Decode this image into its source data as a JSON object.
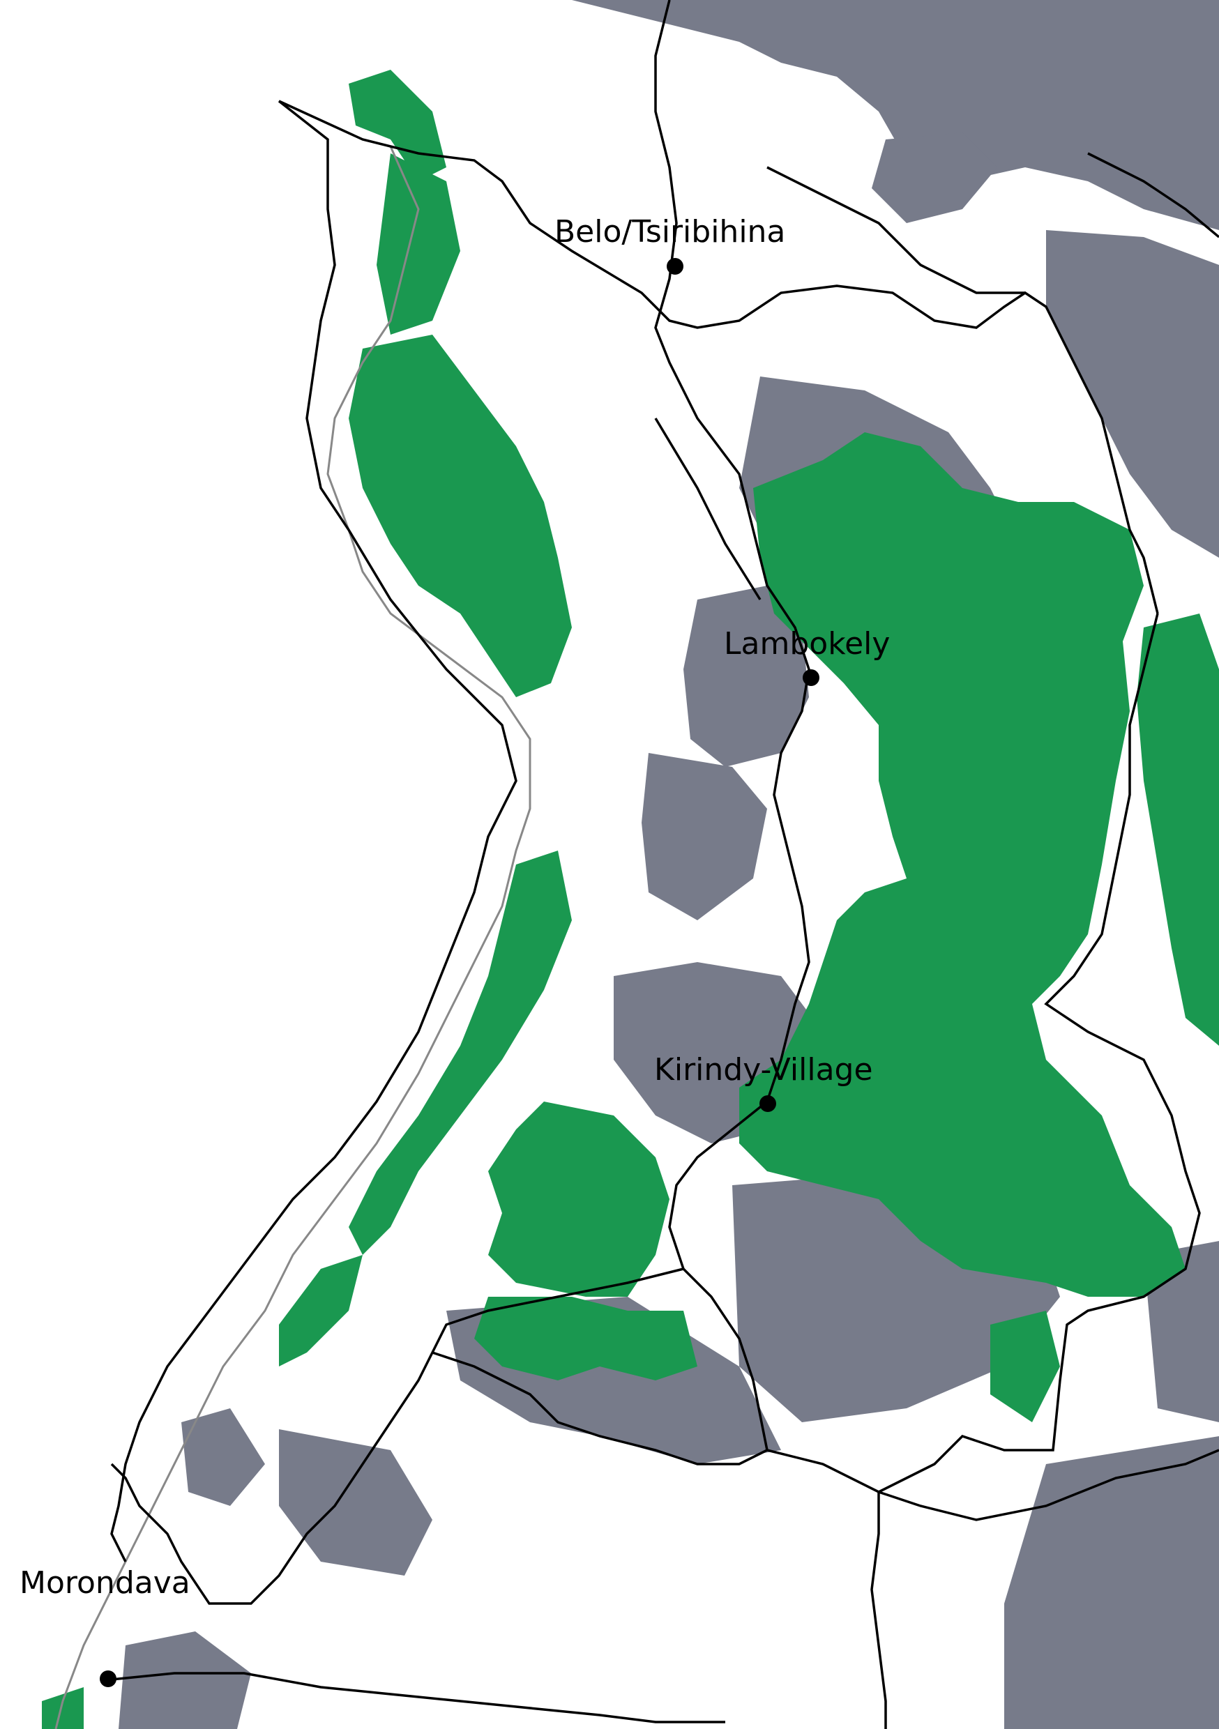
{
  "map": {
    "towns": [
      {
        "id": "belo",
        "name": "Belo/Tsiribihina"
      },
      {
        "id": "lambokely",
        "name": "Lambokely"
      },
      {
        "id": "kirindy",
        "name": "Kirindy-Village"
      },
      {
        "id": "morondava",
        "name": "Morondava"
      }
    ],
    "colors": {
      "forest": "#1a9850",
      "degraded": "#777b8a",
      "background": "#ffffff",
      "boundary": "#000000",
      "coast": "#888888"
    }
  }
}
